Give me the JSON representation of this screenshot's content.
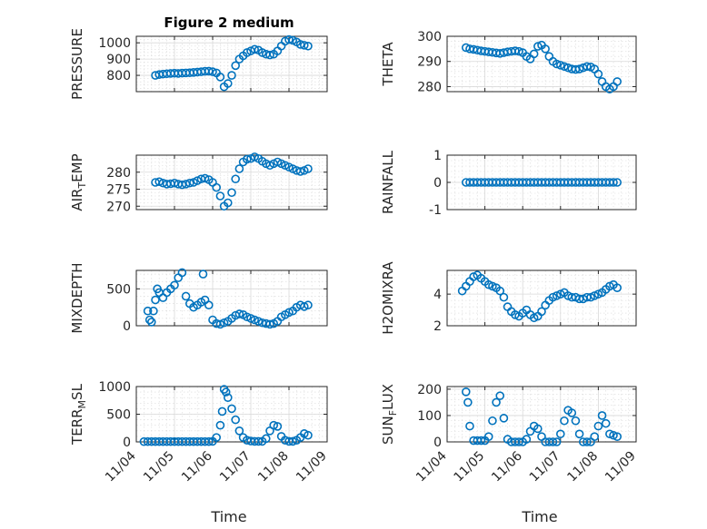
{
  "figure": {
    "title": "Figure 2 medium",
    "xlabel": "Time",
    "marker_color": "#0072BD",
    "x_tick_labels": [
      "11/04",
      "11/05",
      "11/06",
      "11/07",
      "11/08",
      "11/09"
    ]
  },
  "chart_data": [
    {
      "type": "scatter",
      "ylabel": "PRESSURE",
      "ylim": [
        700,
        1040
      ],
      "yticks": [
        800,
        900,
        1000
      ],
      "xlim": [
        0,
        5
      ],
      "grid": "on",
      "x": [
        0.5,
        0.6,
        0.7,
        0.8,
        0.9,
        1.0,
        1.1,
        1.2,
        1.3,
        1.4,
        1.5,
        1.6,
        1.7,
        1.8,
        1.9,
        2.0,
        2.1,
        2.2,
        2.3,
        2.4,
        2.5,
        2.6,
        2.7,
        2.8,
        2.9,
        3.0,
        3.1,
        3.2,
        3.3,
        3.4,
        3.5,
        3.6,
        3.7,
        3.8,
        3.9,
        4.0,
        4.1,
        4.2,
        4.3,
        4.4,
        4.5
      ],
      "y": [
        800,
        805,
        808,
        810,
        812,
        813,
        812,
        814,
        815,
        816,
        818,
        820,
        822,
        825,
        826,
        822,
        815,
        790,
        730,
        750,
        800,
        860,
        900,
        920,
        940,
        950,
        960,
        955,
        940,
        930,
        925,
        930,
        950,
        980,
        1010,
        1020,
        1015,
        1005,
        990,
        985,
        980
      ]
    },
    {
      "type": "scatter",
      "ylabel": "THETA",
      "ylim": [
        278,
        300
      ],
      "yticks": [
        280,
        290,
        300
      ],
      "xlim": [
        0,
        5
      ],
      "grid": "on",
      "x": [
        0.5,
        0.6,
        0.7,
        0.8,
        0.9,
        1.0,
        1.1,
        1.2,
        1.3,
        1.4,
        1.5,
        1.6,
        1.7,
        1.8,
        1.9,
        2.0,
        2.1,
        2.2,
        2.3,
        2.4,
        2.5,
        2.6,
        2.7,
        2.8,
        2.9,
        3.0,
        3.1,
        3.2,
        3.3,
        3.4,
        3.5,
        3.6,
        3.7,
        3.8,
        3.9,
        4.0,
        4.1,
        4.2,
        4.3,
        4.4,
        4.5
      ],
      "y": [
        295.5,
        295,
        294.8,
        294.5,
        294.2,
        294,
        293.8,
        293.6,
        293.4,
        293.2,
        293.5,
        293.8,
        294,
        294.2,
        294,
        293.5,
        292,
        291,
        293,
        296,
        296.5,
        295,
        292,
        290,
        289,
        288.5,
        288,
        287.5,
        287,
        286.8,
        287,
        287.5,
        288,
        287.8,
        287,
        285,
        282,
        280,
        279,
        280,
        282
      ]
    },
    {
      "type": "scatter",
      "ylabel": "AIR_TEMP",
      "ylim": [
        269,
        285
      ],
      "yticks": [
        270,
        275,
        280
      ],
      "xlim": [
        0,
        5
      ],
      "grid": "on",
      "x": [
        0.5,
        0.6,
        0.7,
        0.8,
        0.9,
        1.0,
        1.1,
        1.2,
        1.3,
        1.4,
        1.5,
        1.6,
        1.7,
        1.8,
        1.9,
        2.0,
        2.1,
        2.2,
        2.3,
        2.4,
        2.5,
        2.6,
        2.7,
        2.8,
        2.9,
        3.0,
        3.1,
        3.2,
        3.3,
        3.4,
        3.5,
        3.6,
        3.7,
        3.8,
        3.9,
        4.0,
        4.1,
        4.2,
        4.3,
        4.4,
        4.5
      ],
      "y": [
        277,
        277.2,
        276.8,
        276.5,
        276.6,
        276.8,
        276.5,
        276.3,
        276.5,
        276.8,
        277,
        277.5,
        278,
        278.2,
        277.8,
        277,
        275.5,
        273,
        270,
        271,
        274,
        278,
        281,
        283,
        283.8,
        284,
        284.5,
        284,
        283.2,
        282.5,
        282,
        282.5,
        283,
        282.5,
        282,
        281.5,
        281,
        280.5,
        280.2,
        280.5,
        281
      ]
    },
    {
      "type": "scatter",
      "ylabel": "RAINFALL",
      "ylim": [
        -1,
        1
      ],
      "yticks": [
        -1,
        0,
        1
      ],
      "xlim": [
        0,
        5
      ],
      "grid": "on",
      "x": [
        0.5,
        0.6,
        0.7,
        0.8,
        0.9,
        1.0,
        1.1,
        1.2,
        1.3,
        1.4,
        1.5,
        1.6,
        1.7,
        1.8,
        1.9,
        2.0,
        2.1,
        2.2,
        2.3,
        2.4,
        2.5,
        2.6,
        2.7,
        2.8,
        2.9,
        3.0,
        3.1,
        3.2,
        3.3,
        3.4,
        3.5,
        3.6,
        3.7,
        3.8,
        3.9,
        4.0,
        4.1,
        4.2,
        4.3,
        4.4,
        4.5
      ],
      "y": [
        0,
        0,
        0,
        0,
        0,
        0,
        0,
        0,
        0,
        0,
        0,
        0,
        0,
        0,
        0,
        0,
        0,
        0,
        0,
        0,
        0,
        0,
        0,
        0,
        0,
        0,
        0,
        0,
        0,
        0,
        0,
        0,
        0,
        0,
        0,
        0,
        0,
        0,
        0,
        0,
        0
      ]
    },
    {
      "type": "scatter",
      "ylabel": "MIXDEPTH",
      "ylim": [
        0,
        750
      ],
      "yticks": [
        0,
        500
      ],
      "xlim": [
        0,
        5
      ],
      "grid": "on",
      "x": [
        0.3,
        0.35,
        0.4,
        0.45,
        0.5,
        0.55,
        0.6,
        0.7,
        0.8,
        0.9,
        1.0,
        1.1,
        1.2,
        1.3,
        1.4,
        1.5,
        1.6,
        1.7,
        1.75,
        1.8,
        1.9,
        2.0,
        2.1,
        2.2,
        2.3,
        2.4,
        2.5,
        2.6,
        2.7,
        2.8,
        2.9,
        3.0,
        3.1,
        3.2,
        3.3,
        3.4,
        3.5,
        3.6,
        3.7,
        3.8,
        3.9,
        4.0,
        4.1,
        4.2,
        4.3,
        4.4,
        4.5
      ],
      "y": [
        200,
        80,
        50,
        200,
        350,
        500,
        450,
        380,
        450,
        500,
        550,
        650,
        720,
        400,
        300,
        250,
        280,
        320,
        700,
        350,
        280,
        80,
        30,
        20,
        40,
        60,
        100,
        140,
        160,
        150,
        120,
        100,
        80,
        60,
        40,
        30,
        20,
        30,
        60,
        120,
        150,
        180,
        200,
        250,
        280,
        260,
        280
      ]
    },
    {
      "type": "scatter",
      "ylabel": "H2OMIXRA",
      "ylim": [
        2,
        5.5
      ],
      "yticks": [
        2,
        4
      ],
      "xlim": [
        0,
        5
      ],
      "grid": "on",
      "x": [
        0.4,
        0.5,
        0.6,
        0.7,
        0.8,
        0.9,
        1.0,
        1.1,
        1.2,
        1.3,
        1.4,
        1.5,
        1.6,
        1.7,
        1.8,
        1.9,
        2.0,
        2.1,
        2.2,
        2.3,
        2.4,
        2.5,
        2.6,
        2.7,
        2.8,
        2.9,
        3.0,
        3.1,
        3.2,
        3.3,
        3.4,
        3.5,
        3.6,
        3.7,
        3.8,
        3.9,
        4.0,
        4.1,
        4.2,
        4.3,
        4.4,
        4.5
      ],
      "y": [
        4.2,
        4.5,
        4.8,
        5.1,
        5.2,
        5.0,
        4.8,
        4.6,
        4.5,
        4.4,
        4.2,
        3.8,
        3.2,
        2.9,
        2.7,
        2.6,
        2.8,
        3.0,
        2.7,
        2.5,
        2.6,
        2.9,
        3.3,
        3.6,
        3.8,
        3.9,
        4.0,
        4.1,
        3.9,
        3.8,
        3.8,
        3.7,
        3.7,
        3.8,
        3.8,
        3.9,
        4.0,
        4.1,
        4.3,
        4.5,
        4.6,
        4.4
      ]
    },
    {
      "type": "scatter",
      "ylabel": "TERR_MSL",
      "ylim": [
        0,
        1000
      ],
      "yticks": [
        0,
        500,
        1000
      ],
      "xlim": [
        0,
        5
      ],
      "grid": "on",
      "x": [
        0.2,
        0.3,
        0.4,
        0.5,
        0.6,
        0.7,
        0.8,
        0.9,
        1.0,
        1.1,
        1.2,
        1.3,
        1.4,
        1.5,
        1.6,
        1.7,
        1.8,
        1.9,
        2.0,
        2.1,
        2.2,
        2.25,
        2.3,
        2.35,
        2.4,
        2.5,
        2.6,
        2.7,
        2.8,
        2.9,
        3.0,
        3.1,
        3.2,
        3.3,
        3.4,
        3.5,
        3.6,
        3.7,
        3.8,
        3.9,
        4.0,
        4.1,
        4.2,
        4.3,
        4.4,
        4.5
      ],
      "y": [
        5,
        5,
        5,
        5,
        5,
        5,
        5,
        5,
        5,
        5,
        5,
        5,
        5,
        5,
        5,
        5,
        5,
        5,
        10,
        80,
        300,
        550,
        950,
        900,
        800,
        600,
        400,
        200,
        80,
        30,
        15,
        10,
        10,
        10,
        60,
        200,
        300,
        280,
        100,
        30,
        10,
        10,
        30,
        80,
        150,
        120
      ]
    },
    {
      "type": "scatter",
      "ylabel": "SUN_FLUX",
      "ylim": [
        0,
        210
      ],
      "yticks": [
        0,
        100,
        200
      ],
      "xlim": [
        0,
        5
      ],
      "grid": "on",
      "x": [
        0.5,
        0.55,
        0.6,
        0.7,
        0.8,
        0.9,
        1.0,
        1.1,
        1.2,
        1.3,
        1.4,
        1.5,
        1.6,
        1.7,
        1.8,
        1.9,
        2.0,
        2.1,
        2.2,
        2.3,
        2.4,
        2.5,
        2.6,
        2.7,
        2.8,
        2.9,
        3.0,
        3.1,
        3.2,
        3.3,
        3.4,
        3.5,
        3.6,
        3.7,
        3.8,
        3.9,
        4.0,
        4.1,
        4.2,
        4.3,
        4.4,
        4.5
      ],
      "y": [
        190,
        150,
        60,
        5,
        5,
        5,
        5,
        20,
        80,
        150,
        175,
        90,
        10,
        0,
        0,
        0,
        0,
        10,
        40,
        60,
        50,
        20,
        0,
        0,
        0,
        0,
        30,
        80,
        120,
        110,
        80,
        30,
        0,
        0,
        0,
        20,
        60,
        100,
        70,
        30,
        25,
        20
      ]
    }
  ]
}
